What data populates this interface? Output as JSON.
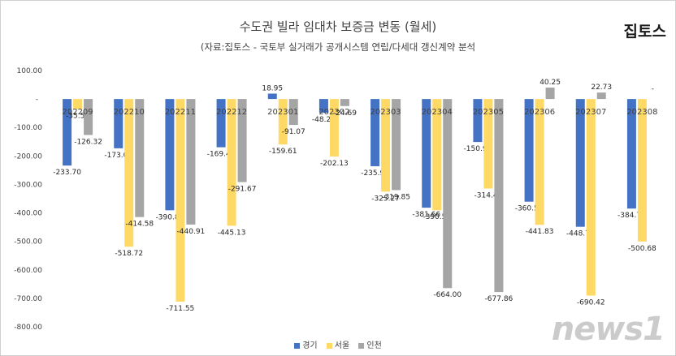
{
  "brand": "집토스",
  "watermark": "news1",
  "chart_data": {
    "type": "bar",
    "title": "수도권 빌라 임대차 보증금 변동 (월세)",
    "subtitle": "(자료:집토스 - 국토부 실거래가 공개시스템 연립/다세대 갱신계약 분석",
    "categories": [
      "202209",
      "202210",
      "202211",
      "202212",
      "202301",
      "202302",
      "202303",
      "202304",
      "202305",
      "202306",
      "202307",
      "202308"
    ],
    "series": [
      {
        "name": "경기",
        "color": "#4472c4",
        "values": [
          -233.7,
          -173.03,
          -390.8,
          -169.4,
          18.95,
          -48.22,
          -235.98,
          -381.66,
          -150.98,
          -360.55,
          -448.71,
          -384.71
        ]
      },
      {
        "name": "서울",
        "color": "#ffd966",
        "values": [
          -35.5,
          -518.72,
          -711.55,
          -445.13,
          -159.61,
          -202.13,
          -325.27,
          -390.52,
          -314.46,
          -441.83,
          -690.42,
          -500.68
        ]
      },
      {
        "name": "인천",
        "color": "#a5a5a5",
        "values": [
          -126.32,
          -414.58,
          -440.91,
          -291.67,
          -91.07,
          -24.69,
          -319.85,
          -664.0,
          -677.86,
          40.25,
          22.73,
          null
        ]
      }
    ],
    "data_labels": {
      "경기": [
        "-233.70",
        "-173.03",
        "-390.80",
        "-169.40",
        "18.95",
        "-48.22",
        "-235.98",
        "-381.66",
        "-150.98",
        "-360.55",
        "-448.71",
        "-384.71"
      ],
      "서울": [
        "-35.50",
        "-518.72",
        "-711.55",
        "-445.13",
        "-159.61",
        "-202.13",
        "-325.27",
        "-390.52",
        "-314.46",
        "-441.83",
        "-690.42",
        "-500.68"
      ],
      "인천": [
        "-126.32",
        "-414.58",
        "-440.91",
        "-291.67",
        "-91.07",
        "-24.69",
        "-319.85",
        "-664.00",
        "-677.86",
        "40.25",
        "22.73",
        "-"
      ]
    },
    "y_ticks": [
      "100.00",
      "-",
      "-100.00",
      "-200.00",
      "-300.00",
      "-400.00",
      "-500.00",
      "-600.00",
      "-700.00",
      "-800.00"
    ],
    "ylim": [
      -800,
      100
    ],
    "grid": false,
    "legend_position": "bottom"
  }
}
